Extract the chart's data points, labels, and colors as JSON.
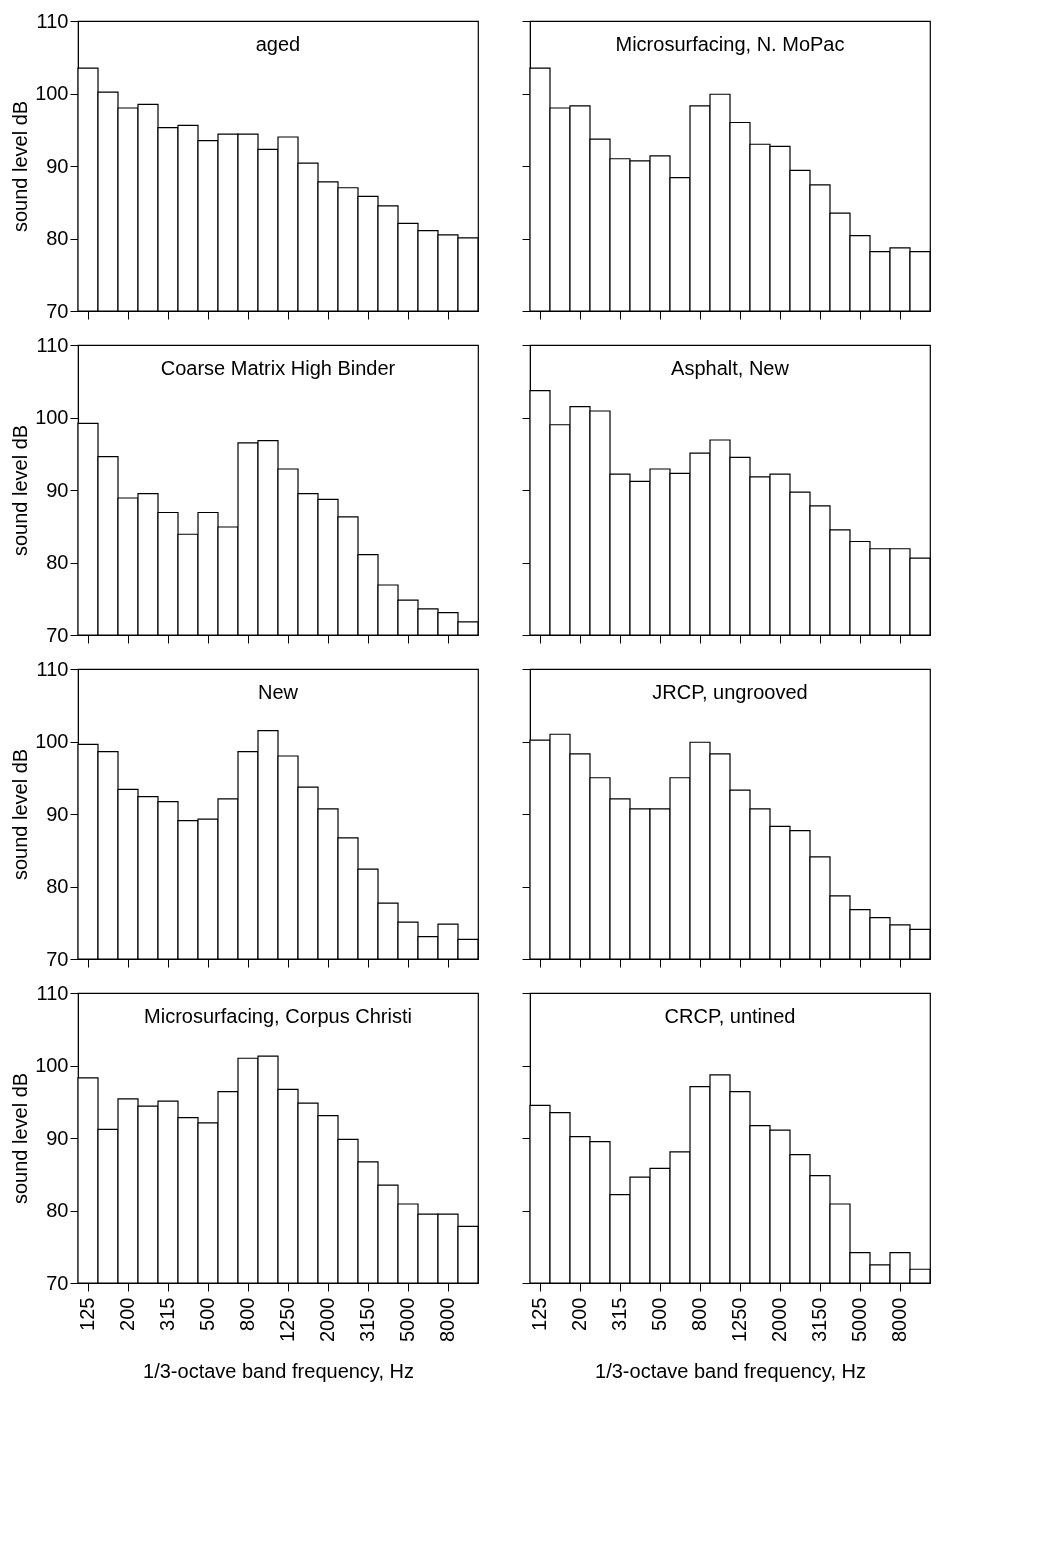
{
  "chart_data": [
    {
      "type": "bar",
      "title": "aged",
      "ylabel": "sound level dB",
      "categories": [
        "125",
        null,
        "200",
        null,
        "315",
        null,
        "500",
        null,
        "800",
        null,
        "1250",
        null,
        "2000",
        null,
        "3150",
        null,
        "5000",
        null,
        "8000",
        null
      ],
      "values": [
        103.5,
        100.2,
        98,
        98.5,
        95.3,
        95.6,
        93.5,
        94.4,
        94.4,
        92.3,
        94,
        90.4,
        87.8,
        87,
        85.8,
        84.5,
        82.1,
        81.1,
        80.5,
        80.1
      ],
      "color": "#ffffff",
      "ylim": [
        70,
        110
      ],
      "yticks": [
        70,
        80,
        90,
        100,
        110
      ],
      "tick_labels": "y",
      "grid": false
    },
    {
      "type": "bar",
      "title": "Microsurfacing, N. MoPac",
      "categories": [
        "125",
        null,
        "200",
        null,
        "315",
        null,
        "500",
        null,
        "800",
        null,
        "1250",
        null,
        "2000",
        null,
        "3150",
        null,
        "5000",
        null,
        "8000",
        null
      ],
      "values": [
        103.5,
        98,
        98.3,
        93.7,
        91,
        90.7,
        91.4,
        88.4,
        98.3,
        99.9,
        96,
        93,
        92.7,
        89.4,
        87.4,
        83.5,
        80.4,
        78.2,
        78.7,
        78.2
      ],
      "color": "#ffffff",
      "ylim": [
        70,
        110
      ],
      "yticks": [
        70,
        80,
        90,
        100,
        110
      ],
      "tick_labels": false,
      "grid": false
    },
    {
      "type": "bar",
      "title": "Coarse Matrix High Binder",
      "ylabel": "sound level dB",
      "categories": [
        "125",
        null,
        "200",
        null,
        "315",
        null,
        "500",
        null,
        "800",
        null,
        "1250",
        null,
        "2000",
        null,
        "3150",
        null,
        "5000",
        null,
        "8000",
        null
      ],
      "values": [
        99.2,
        94.6,
        88.9,
        89.5,
        86.9,
        83.9,
        86.9,
        84.9,
        96.5,
        96.8,
        92.9,
        89.5,
        88.7,
        86.3,
        81.1,
        76.9,
        74.8,
        73.6,
        73.1,
        71.8
      ],
      "color": "#ffffff",
      "ylim": [
        70,
        110
      ],
      "yticks": [
        70,
        80,
        90,
        100,
        110
      ],
      "tick_labels": "y",
      "grid": false
    },
    {
      "type": "bar",
      "title": "Asphalt, New",
      "categories": [
        "125",
        null,
        "200",
        null,
        "315",
        null,
        "500",
        null,
        "800",
        null,
        "1250",
        null,
        "2000",
        null,
        "3150",
        null,
        "5000",
        null,
        "8000",
        null
      ],
      "values": [
        103.7,
        99,
        101.5,
        100.9,
        92.2,
        91.2,
        92.9,
        92.3,
        95.1,
        96.9,
        94.5,
        91.8,
        92.2,
        89.7,
        87.8,
        84.5,
        82.9,
        81.9,
        81.9,
        80.6
      ],
      "color": "#ffffff",
      "ylim": [
        70,
        110
      ],
      "yticks": [
        70,
        80,
        90,
        100,
        110
      ],
      "tick_labels": false,
      "grid": false
    },
    {
      "type": "bar",
      "title": "New",
      "ylabel": "sound level dB",
      "categories": [
        "125",
        null,
        "200",
        null,
        "315",
        null,
        "500",
        null,
        "800",
        null,
        "1250",
        null,
        "2000",
        null,
        "3150",
        null,
        "5000",
        null,
        "8000",
        null
      ],
      "values": [
        99.6,
        98.6,
        93.4,
        92.4,
        91.7,
        89.1,
        89.3,
        92.1,
        98.6,
        101.5,
        98,
        93.7,
        90.7,
        86.7,
        82.4,
        77.7,
        75.1,
        73.1,
        74.8,
        72.7
      ],
      "color": "#ffffff",
      "ylim": [
        70,
        110
      ],
      "yticks": [
        70,
        80,
        90,
        100,
        110
      ],
      "tick_labels": "y",
      "grid": false
    },
    {
      "type": "bar",
      "title": "JRCP, ungrooved",
      "categories": [
        "125",
        null,
        "200",
        null,
        "315",
        null,
        "500",
        null,
        "800",
        null,
        "1250",
        null,
        "2000",
        null,
        "3150",
        null,
        "5000",
        null,
        "8000",
        null
      ],
      "values": [
        100.2,
        101,
        98.3,
        95,
        92.1,
        90.7,
        90.7,
        95,
        99.9,
        98.3,
        93.3,
        90.7,
        88.3,
        87.7,
        84.1,
        78.7,
        76.8,
        75.7,
        74.7,
        74.1
      ],
      "color": "#ffffff",
      "ylim": [
        70,
        110
      ],
      "yticks": [
        70,
        80,
        90,
        100,
        110
      ],
      "tick_labels": false,
      "grid": false
    },
    {
      "type": "bar",
      "title": "Microsurfacing, Corpus Christi",
      "ylabel": "sound level dB",
      "xlabel": "1/3-octave band frequency, Hz",
      "categories": [
        "125",
        null,
        "200",
        null,
        "315",
        null,
        "500",
        null,
        "800",
        null,
        "1250",
        null,
        "2000",
        null,
        "3150",
        null,
        "5000",
        null,
        "8000",
        null
      ],
      "values": [
        98.3,
        91.2,
        95.4,
        94.4,
        95.1,
        92.8,
        92.1,
        96.4,
        101,
        101.3,
        96.7,
        94.8,
        93.1,
        89.8,
        86.7,
        83.5,
        80.9,
        79.5,
        79.5,
        77.8
      ],
      "color": "#ffffff",
      "ylim": [
        70,
        110
      ],
      "yticks": [
        70,
        80,
        90,
        100,
        110
      ],
      "grid": false
    },
    {
      "type": "bar",
      "title": "CRCP, untined",
      "xlabel": "1/3-octave band frequency, Hz",
      "categories": [
        "125",
        null,
        "200",
        null,
        "315",
        null,
        "500",
        null,
        "800",
        null,
        "1250",
        null,
        "2000",
        null,
        "3150",
        null,
        "5000",
        null,
        "8000",
        null
      ],
      "values": [
        94.5,
        93.5,
        90.2,
        89.5,
        82.2,
        84.6,
        85.8,
        88.1,
        97.1,
        98.7,
        96.4,
        91.7,
        91.1,
        87.7,
        84.8,
        80.9,
        74.2,
        72.5,
        74.2,
        71.9
      ],
      "color": "#ffffff",
      "ylim": [
        70,
        110
      ],
      "yticks": [
        70,
        80,
        90,
        100,
        110
      ],
      "tick_labels": "x",
      "grid": false
    }
  ]
}
